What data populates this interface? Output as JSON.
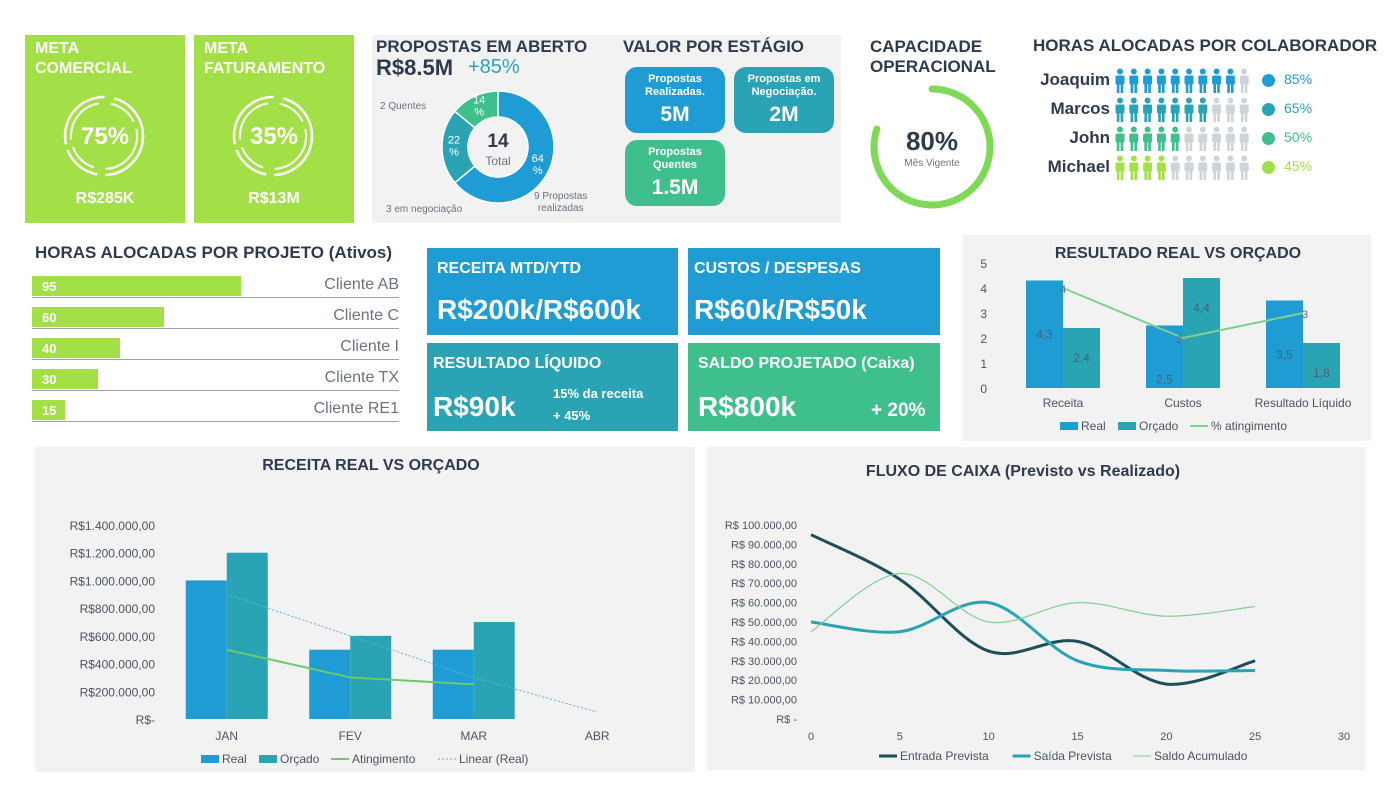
{
  "meta_comercial": {
    "title_1": "META",
    "title_2": "COMERCIAL",
    "percent": "75%",
    "progress": 0.75,
    "value": "R$285K"
  },
  "meta_faturamento": {
    "title_1": "META",
    "title_2": "FATURAMENTO",
    "percent": "35%",
    "progress": 0.35,
    "value": "R$13M"
  },
  "propostas": {
    "title": "PROPOSTAS EM ABERTO",
    "value": "R$8.5M",
    "growth": "+85%",
    "total_num": "14",
    "total_label": "Total",
    "donut": [
      {
        "label": "64\n%",
        "value": 64,
        "color": "#1f9cd4"
      },
      {
        "label": "22\n%",
        "value": 22,
        "color": "#2aa3b4"
      },
      {
        "label": "14\n%",
        "value": 14,
        "color": "#3ebf8c"
      }
    ],
    "label_quentes": "2 Quentes",
    "label_negociacao": "3 em negociação",
    "label_realizadas_1": "9 Propostas",
    "label_realizadas_2": "realizadas"
  },
  "valor_estagio": {
    "title": "VALOR POR ESTÁGIO",
    "stages": [
      {
        "label_1": "Propostas",
        "label_2": "Realizadas.",
        "value": "5M",
        "color": "#1f9cd4"
      },
      {
        "label_1": "Propostas em",
        "label_2": "Negociação.",
        "value": "2M",
        "color": "#2aa3b4"
      },
      {
        "label_1": "Propostas",
        "label_2": "Quentes",
        "value": "1.5M",
        "color": "#3ebf8c"
      }
    ]
  },
  "capacidade": {
    "title_1": "CAPACIDADE",
    "title_2": "OPERACIONAL",
    "percent": "80%",
    "progress": 0.8,
    "sublabel": "Mês Vigente"
  },
  "horas_colaborador": {
    "title": "HORAS ALOCADAS POR COLABORADOR",
    "people": [
      {
        "name": "Joaquim",
        "percent": "85%",
        "filled": 9,
        "color": "#1f9cd4"
      },
      {
        "name": "Marcos",
        "percent": "65%",
        "filled": 7,
        "color": "#2aa3b4"
      },
      {
        "name": "John",
        "percent": "50%",
        "filled": 5,
        "color": "#3ebf8c"
      },
      {
        "name": "Michael",
        "percent": "45%",
        "filled": 4,
        "color": "#a3e048"
      }
    ]
  },
  "horas_projeto": {
    "title": "HORAS ALOCADAS POR PROJETO (Ativos)",
    "rows": [
      {
        "value": "95",
        "label": "Cliente AB",
        "amount": 95
      },
      {
        "value": "60",
        "label": "Cliente C",
        "amount": 60
      },
      {
        "value": "40",
        "label": "Cliente I",
        "amount": 40
      },
      {
        "value": "30",
        "label": "Cliente TX",
        "amount": 30
      },
      {
        "value": "15",
        "label": "Cliente RE1",
        "amount": 15
      }
    ]
  },
  "financeiro": {
    "receita": {
      "title": "RECEITA MTD/YTD",
      "value": "R$200k/R$600k"
    },
    "custos": {
      "title": "CUSTOS / DESPESAS",
      "value": "R$60k/R$50k"
    },
    "resultado": {
      "title": "RESULTADO LÍQUIDO",
      "value": "R$90k",
      "note_1": "15% da receita",
      "note_2": "+ 45%"
    },
    "saldo": {
      "title": "SALDO PROJETADO (Caixa)",
      "value": "R$800k",
      "note": "+ 20%"
    }
  },
  "chart_data": [
    {
      "type": "bar",
      "title": "RESULTADO REAL VS ORÇADO",
      "categories": [
        "Receita",
        "Custos",
        "Resultado Líquido"
      ],
      "series": [
        {
          "name": "Real",
          "values": [
            4.3,
            2.5,
            3.5
          ],
          "labels": [
            "4,3",
            "2,5",
            "3,5"
          ],
          "color": "#1f9cd4"
        },
        {
          "name": "Orçado",
          "values": [
            2.4,
            4.4,
            1.8
          ],
          "labels": [
            "2,4",
            "4,4",
            "1,8"
          ],
          "color": "#2aa3b4"
        },
        {
          "name": "% atingimento",
          "type": "line",
          "values": [
            4,
            2,
            3
          ],
          "labels": [
            "4",
            "2",
            "3"
          ],
          "color": "#7fd18f"
        }
      ],
      "ylim": [
        0,
        5
      ],
      "yticks": [
        "0",
        "1",
        "2",
        "3",
        "4",
        "5"
      ],
      "legend": "bottom"
    },
    {
      "type": "bar",
      "title": "RECEITA REAL VS ORÇADO",
      "categories": [
        "JAN",
        "FEV",
        "MAR",
        "ABR"
      ],
      "series": [
        {
          "name": "Real",
          "values": [
            1000000,
            500000,
            500000,
            null
          ],
          "color": "#1f9cd4"
        },
        {
          "name": "Orçado",
          "values": [
            1200000,
            600000,
            700000,
            null
          ],
          "color": "#2aa3b4"
        },
        {
          "name": "Atingimento",
          "type": "line",
          "values": [
            500000,
            300000,
            250000,
            null
          ],
          "color": "#6cc96f"
        },
        {
          "name": "Linear (Real)",
          "type": "trendline",
          "values": [
            900000,
            600000,
            300000,
            50000
          ],
          "color": "#5bb4dd"
        }
      ],
      "ylim": [
        0,
        1400000
      ],
      "yticks": [
        "R$-",
        "R$200.000,00",
        "R$400.000,00",
        "R$600.000,00",
        "R$800.000,00",
        "R$1.000.000,00",
        "R$1.200.000,00",
        "R$1.400.000,00"
      ],
      "legend": "bottom"
    },
    {
      "type": "line",
      "title": "FLUXO DE CAIXA (Previsto vs Realizado)",
      "xlim": [
        0,
        30
      ],
      "xticks": [
        "0",
        "5",
        "10",
        "15",
        "20",
        "25",
        "30"
      ],
      "ylim": [
        0,
        100000
      ],
      "yticks": [
        "R$ -",
        "R$ 10.000,00",
        "R$ 20.000,00",
        "R$ 30.000,00",
        "R$ 40.000,00",
        "R$ 50.000,00",
        "R$ 60.000,00",
        "R$ 70.000,00",
        "R$ 80.000,00",
        "R$ 90.000,00",
        "R$ 100.000,00"
      ],
      "series": [
        {
          "name": "Entrada Prevista",
          "x": [
            0,
            5,
            10,
            15,
            20,
            25
          ],
          "values": [
            95000,
            72000,
            35000,
            40000,
            18000,
            30000
          ],
          "color": "#1b4f5a",
          "width": 3
        },
        {
          "name": "Saída Prevista",
          "x": [
            0,
            5,
            10,
            15,
            20,
            25
          ],
          "values": [
            50000,
            45000,
            60000,
            30000,
            25000,
            25000
          ],
          "color": "#2aa3b4",
          "width": 3
        },
        {
          "name": "Saldo Acumulado",
          "x": [
            0,
            5,
            10,
            15,
            20,
            25
          ],
          "values": [
            45000,
            75000,
            50000,
            60000,
            53000,
            58000
          ],
          "color": "#7fd18f",
          "width": 1.2
        }
      ],
      "legend": "bottom"
    }
  ]
}
